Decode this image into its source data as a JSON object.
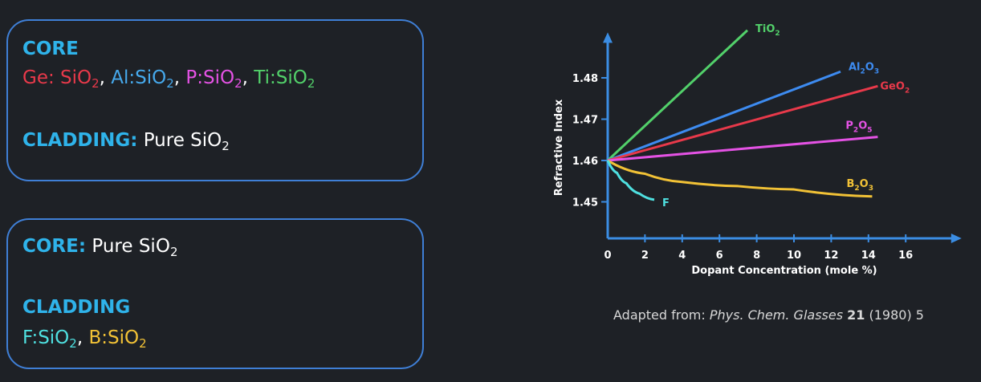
{
  "box1": {
    "core_heading": "CORE",
    "core_dopants": [
      {
        "text": "Ge: SiO",
        "sub": "2",
        "sep": ", ",
        "color": "#e8394a"
      },
      {
        "text": "Al:SiO",
        "sub": "2",
        "sep": ", ",
        "color": "#46a9ec"
      },
      {
        "text": "P:SiO",
        "sub": "2",
        "sep": ", ",
        "color": "#e452e4"
      },
      {
        "text": "Ti:SiO",
        "sub": "2",
        "sep": "",
        "color": "#52d06a"
      }
    ],
    "cladding_heading": "CLADDING:",
    "cladding_text": "Pure SiO",
    "cladding_sub": "2"
  },
  "box2": {
    "core_heading": "CORE:",
    "core_text": "Pure SiO",
    "core_sub": "2",
    "cladding_heading": "CLADDING",
    "cladding_dopants": [
      {
        "text": "F:SiO",
        "sub": "2",
        "sep": ", ",
        "color": "#4fe0e0"
      },
      {
        "text": "B:SiO",
        "sub": "2",
        "sep": "",
        "color": "#f2c236"
      }
    ]
  },
  "chart_data": {
    "type": "line",
    "title": "",
    "xlabel": "Dopant Concentration (mole %)",
    "ylabel": "Refractive Index",
    "xlim": [
      0,
      19
    ],
    "ylim": [
      1.441,
      1.491
    ],
    "xticks": [
      0,
      2,
      4,
      6,
      8,
      10,
      12,
      14,
      16
    ],
    "yticks": [
      1.45,
      1.46,
      1.47,
      1.48
    ],
    "ytick_labels": [
      "1.45",
      "1.46",
      "1.47",
      "1.48"
    ],
    "grid": false,
    "series": [
      {
        "name": "TiO",
        "sub": "2",
        "color": "#52d06a",
        "points": [
          [
            0,
            1.46
          ],
          [
            7.5,
            1.4915
          ]
        ]
      },
      {
        "name": "Al",
        "sub": "2",
        "name2": "O",
        "sub2": "3",
        "color": "#3d8bf0",
        "points": [
          [
            0,
            1.46
          ],
          [
            12.5,
            1.4815
          ]
        ]
      },
      {
        "name": "GeO",
        "sub": "2",
        "color": "#e8394a",
        "points": [
          [
            0,
            1.46
          ],
          [
            14.5,
            1.478
          ]
        ]
      },
      {
        "name": "P",
        "sub": "2",
        "name2": "O",
        "sub2": "5",
        "color": "#e452e4",
        "points": [
          [
            0,
            1.46
          ],
          [
            14.5,
            1.4657
          ]
        ]
      },
      {
        "name": "B",
        "sub": "2",
        "name2": "O",
        "sub2": "3",
        "color": "#f2c236",
        "points": [
          [
            0,
            1.46
          ],
          [
            2,
            1.4568
          ],
          [
            4,
            1.4548
          ],
          [
            7,
            1.4538
          ],
          [
            10,
            1.453
          ],
          [
            14.2,
            1.4513
          ]
        ]
      },
      {
        "name": "F",
        "sub": "",
        "color": "#4fe0e0",
        "points": [
          [
            0,
            1.46
          ],
          [
            0.5,
            1.457
          ],
          [
            1,
            1.4545
          ],
          [
            1.7,
            1.452
          ],
          [
            2.5,
            1.4505
          ]
        ]
      }
    ]
  },
  "citation": {
    "prefix": "Adapted from: ",
    "journal": "Phys. Chem. Glasses",
    "volume": "21",
    "rest": " (1980) 5"
  }
}
